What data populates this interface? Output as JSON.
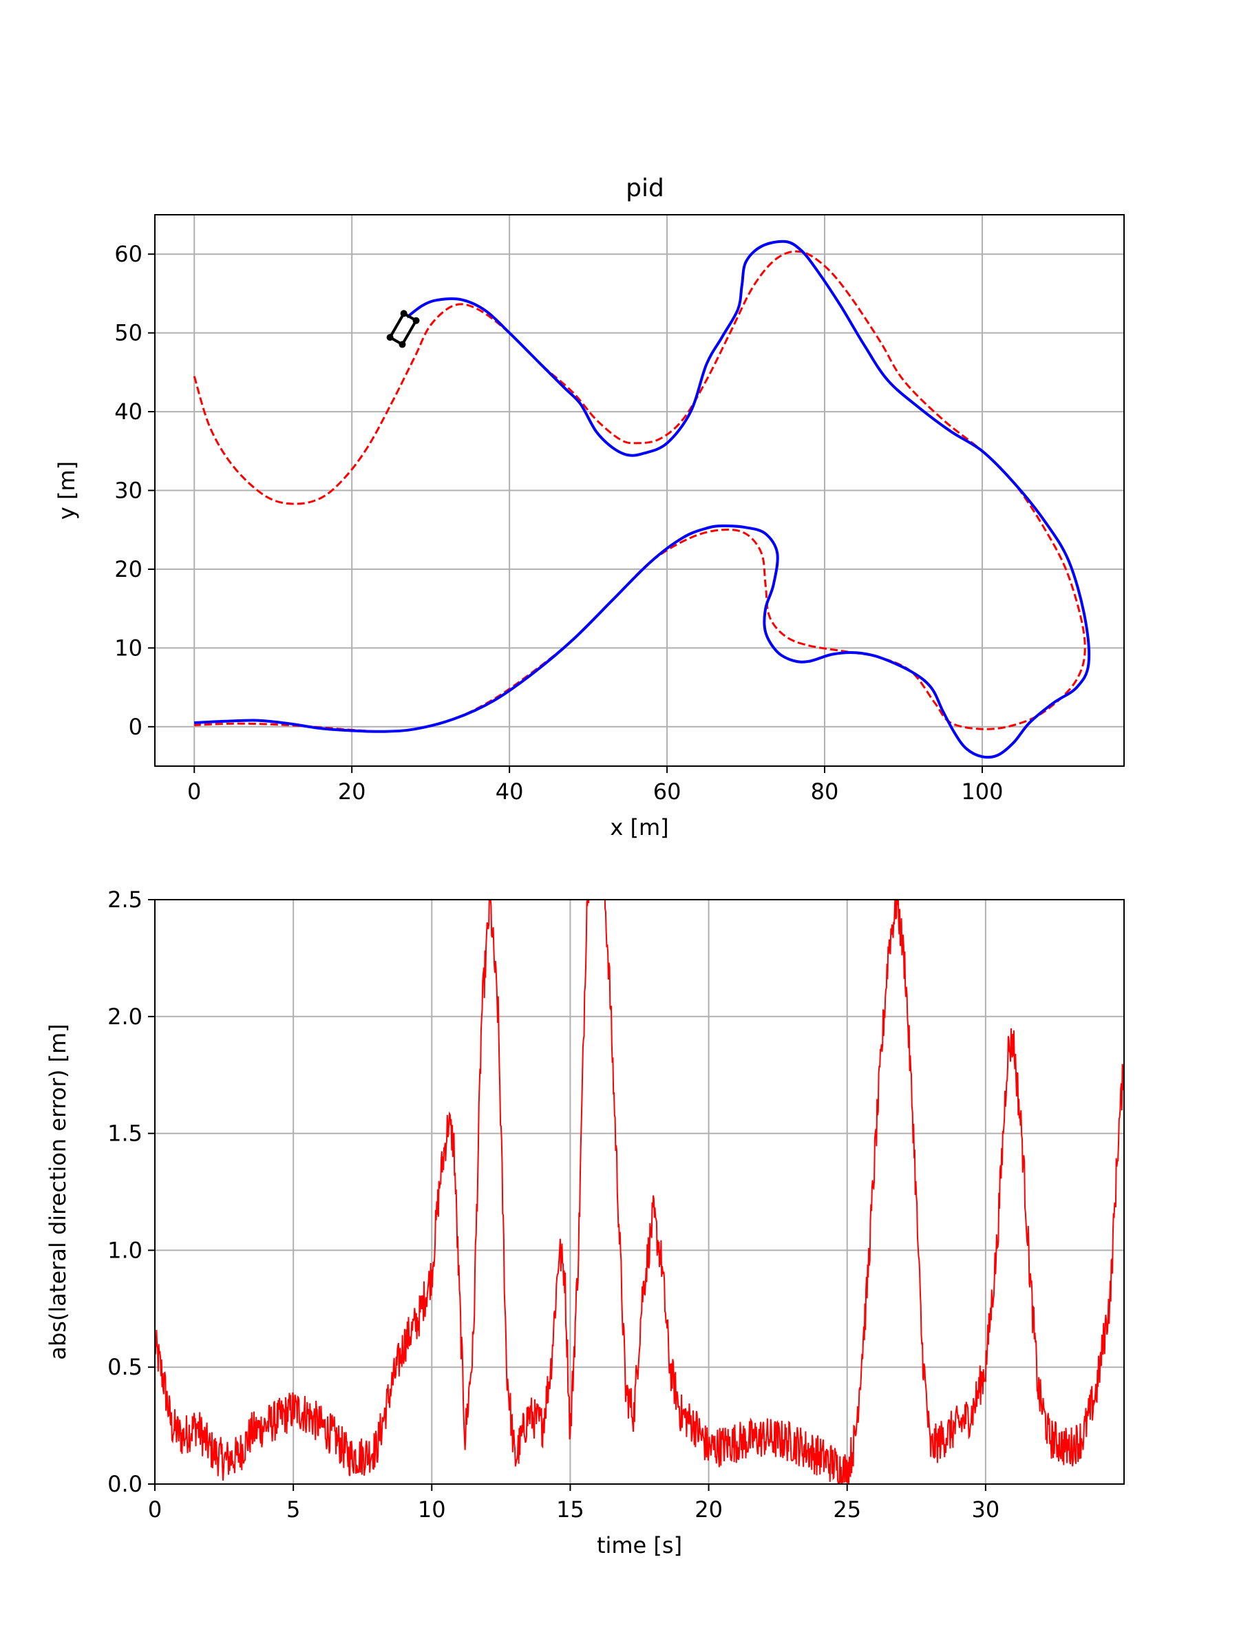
{
  "chart_data": [
    {
      "type": "line",
      "title": "pid",
      "xlabel": "x [m]",
      "ylabel": "y [m]",
      "xlim": [
        -5,
        118
      ],
      "ylim": [
        -5,
        65
      ],
      "xticks": [
        0,
        20,
        40,
        60,
        80,
        100
      ],
      "yticks": [
        0,
        10,
        20,
        30,
        40,
        50,
        60
      ],
      "grid": true,
      "series": [
        {
          "style": "dashed",
          "color": "#ff0000",
          "points": [
            [
              0,
              44.5
            ],
            [
              2,
              38
            ],
            [
              5,
              33
            ],
            [
              9,
              29.3
            ],
            [
              12.5,
              28.3
            ],
            [
              16,
              29
            ],
            [
              19,
              31.5
            ],
            [
              22,
              35.5
            ],
            [
              25,
              41
            ],
            [
              28,
              47
            ],
            [
              30,
              51
            ],
            [
              33,
              53.5
            ],
            [
              36,
              53
            ],
            [
              40,
              50
            ],
            [
              44,
              46
            ],
            [
              48,
              42.5
            ],
            [
              51,
              39
            ],
            [
              54,
              36.5
            ],
            [
              56,
              36
            ],
            [
              59,
              36.5
            ],
            [
              62,
              39
            ],
            [
              65,
              44
            ],
            [
              68,
              50
            ],
            [
              71,
              56
            ],
            [
              74,
              59.5
            ],
            [
              77,
              60.3
            ],
            [
              80,
              58.5
            ],
            [
              83,
              55
            ],
            [
              87,
              49
            ],
            [
              90,
              44
            ],
            [
              95,
              39
            ],
            [
              100,
              35
            ],
            [
              104,
              31
            ],
            [
              108,
              25
            ],
            [
              111,
              19
            ],
            [
              113,
              11
            ],
            [
              112,
              6
            ],
            [
              108,
              2
            ],
            [
              104,
              0.2
            ],
            [
              100,
              -0.3
            ],
            [
              96,
              0.5
            ],
            [
              94,
              3
            ],
            [
              91,
              7
            ],
            [
              87,
              8.8
            ],
            [
              83,
              9.5
            ],
            [
              78,
              10.3
            ],
            [
              75,
              11.5
            ],
            [
              73,
              14
            ],
            [
              72.5,
              18
            ],
            [
              72,
              22
            ],
            [
              70,
              24.5
            ],
            [
              67,
              25
            ],
            [
              63,
              24
            ],
            [
              58,
              21
            ],
            [
              53,
              16
            ],
            [
              48,
              11
            ],
            [
              43,
              7
            ],
            [
              38,
              3.5
            ],
            [
              33,
              1
            ],
            [
              28,
              -0.3
            ],
            [
              24,
              -0.6
            ],
            [
              20,
              -0.4
            ],
            [
              15,
              0
            ],
            [
              10,
              0.3
            ],
            [
              5,
              0.4
            ],
            [
              0,
              0.2
            ]
          ]
        },
        {
          "style": "solid",
          "color": "#0000ff",
          "points": [
            [
              0,
              0.5
            ],
            [
              4,
              0.7
            ],
            [
              8,
              0.8
            ],
            [
              12,
              0.4
            ],
            [
              16,
              -0.2
            ],
            [
              20,
              -0.5
            ],
            [
              24,
              -0.6
            ],
            [
              28,
              -0.3
            ],
            [
              33,
              1
            ],
            [
              38,
              3.3
            ],
            [
              43,
              6.8
            ],
            [
              48,
              11
            ],
            [
              53,
              16
            ],
            [
              58,
              21
            ],
            [
              62,
              24
            ],
            [
              65,
              25.2
            ],
            [
              67,
              25.5
            ],
            [
              70,
              25.3
            ],
            [
              72.5,
              24.5
            ],
            [
              74,
              22
            ],
            [
              73.5,
              18
            ],
            [
              72.5,
              15
            ],
            [
              72.5,
              12
            ],
            [
              74,
              9.5
            ],
            [
              76,
              8.4
            ],
            [
              78,
              8.3
            ],
            [
              81,
              9.2
            ],
            [
              84,
              9.4
            ],
            [
              87,
              8.8
            ],
            [
              91,
              7
            ],
            [
              93.5,
              5
            ],
            [
              95,
              2
            ],
            [
              96.5,
              -0.8
            ],
            [
              98,
              -2.8
            ],
            [
              100,
              -3.8
            ],
            [
              102,
              -3.6
            ],
            [
              104,
              -2
            ],
            [
              106,
              0.5
            ],
            [
              109,
              3
            ],
            [
              112,
              5
            ],
            [
              113.5,
              8
            ],
            [
              113,
              14
            ],
            [
              111,
              21
            ],
            [
              108,
              26
            ],
            [
              104,
              31
            ],
            [
              100,
              35
            ],
            [
              96,
              37.5
            ],
            [
              92,
              40.5
            ],
            [
              88,
              44
            ],
            [
              85,
              48.5
            ],
            [
              82,
              53.5
            ],
            [
              79,
              58
            ],
            [
              77,
              60.5
            ],
            [
              75,
              61.6
            ],
            [
              72,
              61
            ],
            [
              70,
              59
            ],
            [
              69.5,
              56
            ],
            [
              69,
              53
            ],
            [
              67,
              49.5
            ],
            [
              65,
              46
            ],
            [
              63,
              40
            ],
            [
              60,
              36
            ],
            [
              57,
              34.7
            ],
            [
              55,
              34.5
            ],
            [
              53,
              35.5
            ],
            [
              51,
              37.5
            ],
            [
              49,
              41
            ],
            [
              47,
              43
            ],
            [
              44,
              46
            ],
            [
              40,
              50
            ],
            [
              37,
              52.8
            ],
            [
              34,
              54.2
            ],
            [
              31,
              54.2
            ],
            [
              29,
              53.5
            ],
            [
              27,
              52
            ]
          ]
        }
      ],
      "vehicle_marker": {
        "color": "#000000",
        "center": [
          26.5,
          50.5
        ],
        "heading_deg": 60,
        "length": 3.5,
        "width": 1.8
      }
    },
    {
      "type": "line",
      "xlabel": "time [s]",
      "ylabel": "abs(lateral direction error) [m]",
      "xlim": [
        0,
        35
      ],
      "ylim": [
        0,
        2.5
      ],
      "xticks": [
        0,
        5,
        10,
        15,
        20,
        25,
        30
      ],
      "yticks": [
        0.0,
        0.5,
        1.0,
        1.5,
        2.0,
        2.5
      ],
      "ytick_labels": [
        "0.0",
        "0.5",
        "1.0",
        "1.5",
        "2.0",
        "2.5"
      ],
      "grid": true,
      "series": [
        {
          "color": "#ff0000",
          "noise_amplitude": 0.09,
          "points": [
            [
              0,
              0.6
            ],
            [
              0.3,
              0.45
            ],
            [
              0.6,
              0.25
            ],
            [
              1,
              0.2
            ],
            [
              1.5,
              0.25
            ],
            [
              2,
              0.15
            ],
            [
              2.5,
              0.1
            ],
            [
              3,
              0.12
            ],
            [
              3.5,
              0.22
            ],
            [
              4,
              0.25
            ],
            [
              4.5,
              0.28
            ],
            [
              5,
              0.32
            ],
            [
              5.5,
              0.3
            ],
            [
              6,
              0.25
            ],
            [
              6.5,
              0.2
            ],
            [
              7,
              0.12
            ],
            [
              7.5,
              0.12
            ],
            [
              8,
              0.15
            ],
            [
              8.5,
              0.4
            ],
            [
              9,
              0.6
            ],
            [
              9.5,
              0.7
            ],
            [
              10,
              0.9
            ],
            [
              10.3,
              1.3
            ],
            [
              10.6,
              1.55
            ],
            [
              10.8,
              1.45
            ],
            [
              11,
              0.8
            ],
            [
              11.2,
              0.2
            ],
            [
              11.5,
              0.6
            ],
            [
              11.8,
              2.0
            ],
            [
              12.1,
              2.5
            ],
            [
              12.4,
              2.0
            ],
            [
              12.7,
              0.5
            ],
            [
              13,
              0.1
            ],
            [
              13.5,
              0.3
            ],
            [
              14,
              0.25
            ],
            [
              14.3,
              0.5
            ],
            [
              14.6,
              1.0
            ],
            [
              14.8,
              0.9
            ],
            [
              15,
              0.2
            ],
            [
              15.3,
              1.0
            ],
            [
              15.6,
              2.5
            ],
            [
              16,
              3.0
            ],
            [
              16.4,
              2.2
            ],
            [
              16.8,
              1.0
            ],
            [
              17,
              0.4
            ],
            [
              17.3,
              0.3
            ],
            [
              17.6,
              0.8
            ],
            [
              18,
              1.15
            ],
            [
              18.3,
              0.95
            ],
            [
              18.6,
              0.5
            ],
            [
              19,
              0.3
            ],
            [
              19.5,
              0.25
            ],
            [
              20,
              0.15
            ],
            [
              21,
              0.18
            ],
            [
              22,
              0.2
            ],
            [
              23,
              0.18
            ],
            [
              24,
              0.12
            ],
            [
              25,
              0.05
            ],
            [
              25.3,
              0.2
            ],
            [
              25.7,
              0.8
            ],
            [
              26.1,
              1.6
            ],
            [
              26.5,
              2.3
            ],
            [
              26.8,
              2.5
            ],
            [
              27.1,
              2.2
            ],
            [
              27.4,
              1.5
            ],
            [
              27.7,
              0.6
            ],
            [
              28,
              0.15
            ],
            [
              28.5,
              0.2
            ],
            [
              29,
              0.25
            ],
            [
              29.5,
              0.3
            ],
            [
              30,
              0.5
            ],
            [
              30.4,
              1.0
            ],
            [
              30.8,
              1.85
            ],
            [
              31,
              1.9
            ],
            [
              31.3,
              1.5
            ],
            [
              31.6,
              0.9
            ],
            [
              31.9,
              0.4
            ],
            [
              32.3,
              0.2
            ],
            [
              33,
              0.15
            ],
            [
              33.5,
              0.2
            ],
            [
              34,
              0.4
            ],
            [
              34.5,
              0.8
            ],
            [
              34.8,
              1.5
            ],
            [
              35,
              1.8
            ]
          ]
        }
      ]
    }
  ]
}
